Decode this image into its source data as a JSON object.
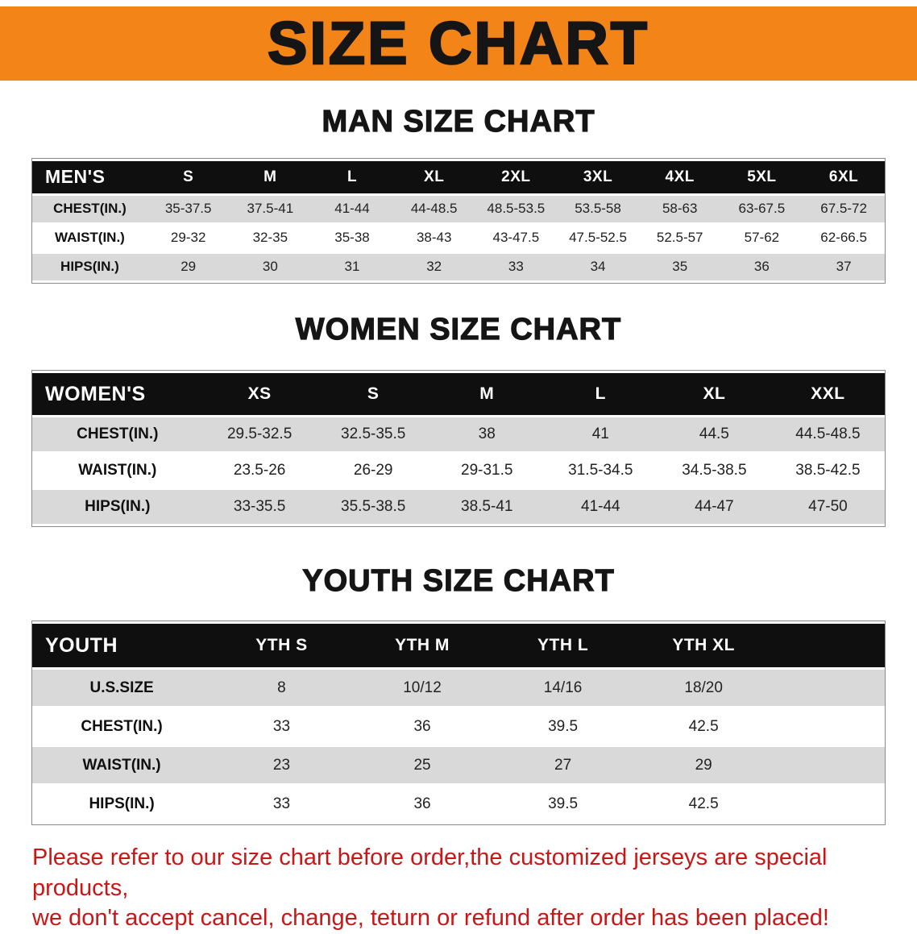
{
  "banner": {
    "title": "SIZE CHART"
  },
  "colors": {
    "banner_orange": "#f28418",
    "table_header_black": "#0f0f0f",
    "row_stripe_gray": "#d9d9d9",
    "disclaimer_red": "#c81717"
  },
  "sections": [
    {
      "id": "men",
      "heading": "MAN SIZE CHART",
      "table": {
        "header": [
          "MEN'S",
          "S",
          "M",
          "L",
          "XL",
          "2XL",
          "3XL",
          "4XL",
          "5XL",
          "6XL"
        ],
        "rows": [
          [
            "CHEST(IN.)",
            "35-37.5",
            "37.5-41",
            "41-44",
            "44-48.5",
            "48.5-53.5",
            "53.5-58",
            "58-63",
            "63-67.5",
            "67.5-72"
          ],
          [
            "WAIST(IN.)",
            "29-32",
            "32-35",
            "35-38",
            "38-43",
            "43-47.5",
            "47.5-52.5",
            "52.5-57",
            "57-62",
            "62-66.5"
          ],
          [
            "HIPS(IN.)",
            "29",
            "30",
            "31",
            "32",
            "33",
            "34",
            "35",
            "36",
            "37"
          ]
        ]
      }
    },
    {
      "id": "women",
      "heading": "WOMEN SIZE CHART",
      "table": {
        "header": [
          "WOMEN'S",
          "XS",
          "S",
          "M",
          "L",
          "XL",
          "XXL"
        ],
        "rows": [
          [
            "CHEST(IN.)",
            "29.5-32.5",
            "32.5-35.5",
            "38",
            "41",
            "44.5",
            "44.5-48.5"
          ],
          [
            "WAIST(IN.)",
            "23.5-26",
            "26-29",
            "29-31.5",
            "31.5-34.5",
            "34.5-38.5",
            "38.5-42.5"
          ],
          [
            "HIPS(IN.)",
            "33-35.5",
            "35.5-38.5",
            "38.5-41",
            "41-44",
            "44-47",
            "47-50"
          ]
        ]
      }
    },
    {
      "id": "youth",
      "heading": "YOUTH SIZE CHART",
      "table": {
        "header": [
          "YOUTH",
          "YTH S",
          "YTH M",
          "YTH L",
          "YTH XL"
        ],
        "rows": [
          [
            "U.S.SIZE",
            "8",
            "10/12",
            "14/16",
            "18/20"
          ],
          [
            "CHEST(IN.)",
            "33",
            "36",
            "39.5",
            "42.5"
          ],
          [
            "WAIST(IN.)",
            "23",
            "25",
            "27",
            "29"
          ],
          [
            "HIPS(IN.)",
            "33",
            "36",
            "39.5",
            "42.5"
          ]
        ]
      }
    }
  ],
  "footer": {
    "line1": "Please refer to our size chart before order,the customized jerseys are special products,",
    "line2": "we don't accept cancel, change, teturn or refund after order has been placed!"
  }
}
